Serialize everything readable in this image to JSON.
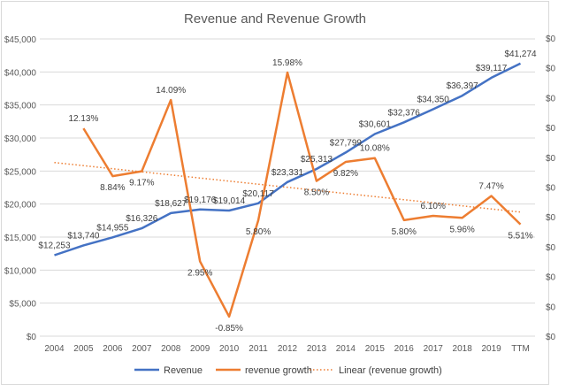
{
  "chart_data": {
    "type": "line",
    "title": "Revenue and Revenue Growth",
    "categories": [
      "2004",
      "2005",
      "2006",
      "2007",
      "2008",
      "2009",
      "2010",
      "2011",
      "2012",
      "2013",
      "2014",
      "2015",
      "2016",
      "2017",
      "2018",
      "2019",
      "TTM"
    ],
    "y_left": {
      "min": 0,
      "max": 45000,
      "step": 5000,
      "tick_labels": [
        "$0",
        "$5,000",
        "$10,000",
        "$15,000",
        "$20,000",
        "$25,000",
        "$30,000",
        "$35,000",
        "$40,000",
        "$45,000"
      ]
    },
    "y_right": {
      "min": -2.2,
      "max": 18.3,
      "tick_labels": [
        "$0",
        "$0",
        "$0",
        "$0",
        "$0",
        "$0",
        "$0",
        "$0",
        "$0",
        "$0",
        "$0"
      ]
    },
    "series": [
      {
        "name": "Revenue",
        "axis": "left",
        "color": "#4472C4",
        "values": [
          12253,
          13740,
          14955,
          16326,
          18627,
          19176,
          19014,
          20117,
          23331,
          25313,
          27799,
          30601,
          32376,
          34350,
          36397,
          39117,
          41274
        ],
        "labels": [
          "$12,253",
          "$13,740",
          "$14,955",
          "$16,326",
          "$18,627",
          "$19,176",
          "$19,014",
          "$20,117",
          "$23,331",
          "$25,313",
          "$27,799",
          "$30,601",
          "$32,376",
          "$34,350",
          "$36,397",
          "$39,117",
          "$41,274"
        ]
      },
      {
        "name": "revenue growth",
        "axis": "right",
        "color": "#ED7D31",
        "values": [
          null,
          12.13,
          8.84,
          9.17,
          14.09,
          2.95,
          -0.85,
          5.8,
          15.98,
          8.5,
          9.82,
          10.08,
          5.8,
          6.1,
          5.96,
          7.47,
          5.51
        ],
        "labels": [
          "",
          "12.13%",
          "8.84%",
          "9.17%",
          "14.09%",
          "2.95%",
          "-0.85%",
          "5.80%",
          "15.98%",
          "8.50%",
          "9.82%",
          "10.08%",
          "5.80%",
          "6.10%",
          "5.96%",
          "7.47%",
          "5.51%"
        ]
      }
    ],
    "trendline": {
      "name": "Linear (revenue growth)",
      "axis": "right",
      "color": "#ED7D31",
      "style": "dotted"
    },
    "legend_position": "bottom",
    "grid": true
  }
}
